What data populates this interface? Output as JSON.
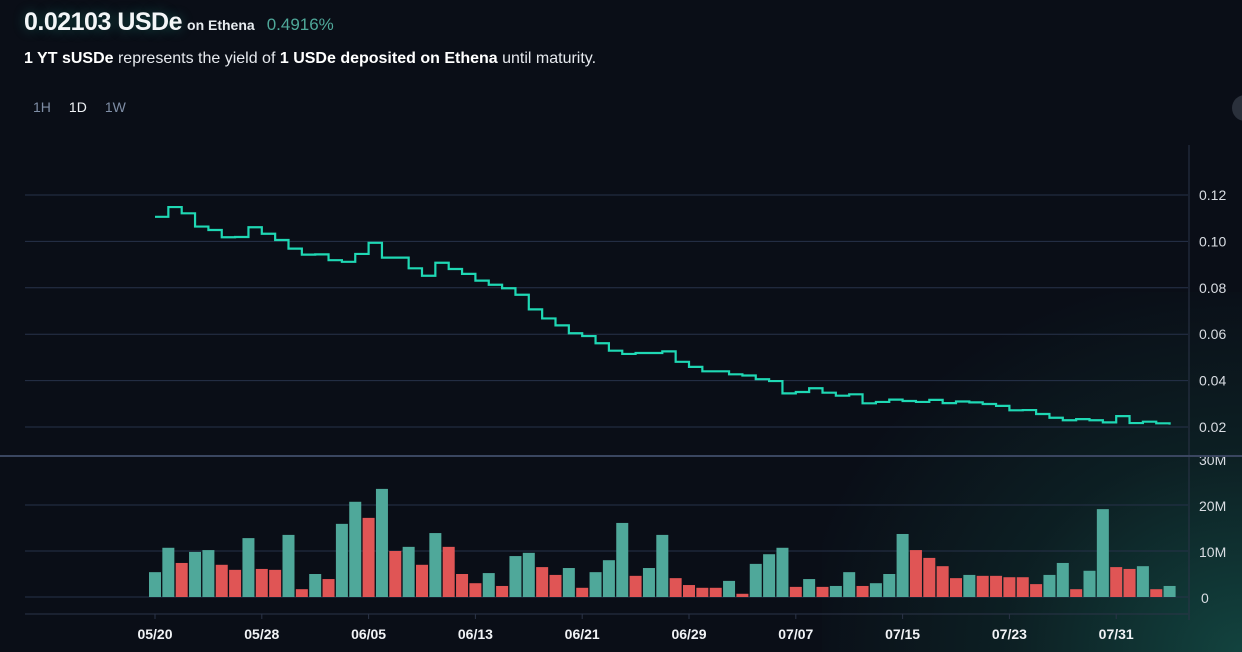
{
  "header": {
    "price": "0.02103 USDe",
    "venue": "on Ethena",
    "change_pct": "0.4916%",
    "description": {
      "part1_bold": "1 YT sUSDe",
      "part2": " represents the yield of ",
      "part3_bold": "1 USDe deposited on Ethena",
      "part4": " until maturity."
    }
  },
  "time_ranges": [
    {
      "label": "1H",
      "active": false
    },
    {
      "label": "1D",
      "active": true
    },
    {
      "label": "1W",
      "active": false
    }
  ],
  "colors": {
    "background": "#0a0e17",
    "line": "#1fd8b4",
    "volume_up": "#4fa89a",
    "volume_down": "#e05555",
    "grid": "#27324a",
    "change": "#4fa89a"
  },
  "chart_data": [
    {
      "type": "line",
      "step": true,
      "x_start": "05/20",
      "x_end": "08/04",
      "x_tick_labels": [
        "05/20",
        "05/28",
        "06/05",
        "06/13",
        "06/21",
        "06/29",
        "07/07",
        "07/15",
        "07/23",
        "07/31"
      ],
      "y_tick_labels": [
        "0.02",
        "0.04",
        "0.06",
        "0.08",
        "0.10",
        "0.12"
      ],
      "ylim": [
        0.02,
        0.12
      ],
      "grid": true,
      "values": [
        0.1106,
        0.1148,
        0.1121,
        0.1064,
        0.1049,
        0.1018,
        0.1019,
        0.1061,
        0.1033,
        0.1006,
        0.0969,
        0.0943,
        0.0944,
        0.0919,
        0.0912,
        0.0946,
        0.0994,
        0.093,
        0.093,
        0.0884,
        0.0852,
        0.0908,
        0.0881,
        0.086,
        0.0831,
        0.0813,
        0.0798,
        0.077,
        0.0707,
        0.0668,
        0.0638,
        0.0604,
        0.0592,
        0.0561,
        0.0529,
        0.0515,
        0.0519,
        0.0519,
        0.0526,
        0.0481,
        0.0459,
        0.044,
        0.044,
        0.0427,
        0.0422,
        0.0406,
        0.0398,
        0.0345,
        0.0351,
        0.0367,
        0.0348,
        0.0335,
        0.0341,
        0.0302,
        0.0308,
        0.0318,
        0.0312,
        0.0308,
        0.0317,
        0.0303,
        0.031,
        0.0306,
        0.0299,
        0.0291,
        0.0272,
        0.0273,
        0.0256,
        0.024,
        0.0229,
        0.0234,
        0.0229,
        0.022,
        0.0247,
        0.0217,
        0.0223,
        0.0216,
        0.02103
      ]
    },
    {
      "type": "bar",
      "unit": "M",
      "y_tick_labels": [
        "0",
        "10M",
        "20M",
        "30M"
      ],
      "ylim": [
        0,
        30
      ],
      "grid": true,
      "values": [
        5.4,
        10.7,
        7.4,
        9.8,
        10.2,
        7.0,
        5.9,
        12.8,
        6.1,
        5.9,
        13.5,
        1.7,
        5.0,
        3.9,
        15.9,
        20.7,
        17.2,
        23.5,
        10.0,
        10.9,
        7.0,
        13.9,
        10.9,
        5.0,
        3.0,
        5.2,
        2.4,
        8.9,
        9.6,
        6.5,
        4.8,
        6.3,
        2.0,
        5.4,
        8.0,
        16.1,
        4.6,
        6.3,
        13.5,
        4.1,
        2.6,
        2.0,
        2.0,
        3.5,
        0.7,
        7.2,
        9.3,
        10.7,
        2.2,
        3.9,
        2.2,
        2.4,
        5.4,
        2.4,
        3.0,
        5.0,
        13.7,
        10.2,
        8.5,
        6.7,
        4.1,
        4.8,
        4.6,
        4.6,
        4.3,
        4.3,
        2.8,
        4.8,
        7.4,
        1.7,
        5.7,
        19.1,
        6.5,
        6.1,
        6.7,
        1.7,
        2.4
      ],
      "direction": [
        "up",
        "up",
        "down",
        "up",
        "up",
        "down",
        "down",
        "up",
        "down",
        "down",
        "up",
        "down",
        "up",
        "down",
        "up",
        "up",
        "down",
        "up",
        "down",
        "up",
        "down",
        "up",
        "down",
        "down",
        "down",
        "up",
        "down",
        "up",
        "up",
        "down",
        "down",
        "up",
        "down",
        "up",
        "up",
        "up",
        "down",
        "up",
        "up",
        "down",
        "down",
        "down",
        "down",
        "up",
        "down",
        "up",
        "up",
        "up",
        "down",
        "up",
        "down",
        "up",
        "up",
        "down",
        "up",
        "up",
        "up",
        "down",
        "down",
        "down",
        "down",
        "up",
        "down",
        "down",
        "down",
        "down",
        "down",
        "up",
        "up",
        "down",
        "up",
        "up",
        "down",
        "down",
        "up",
        "down",
        "up"
      ]
    }
  ]
}
